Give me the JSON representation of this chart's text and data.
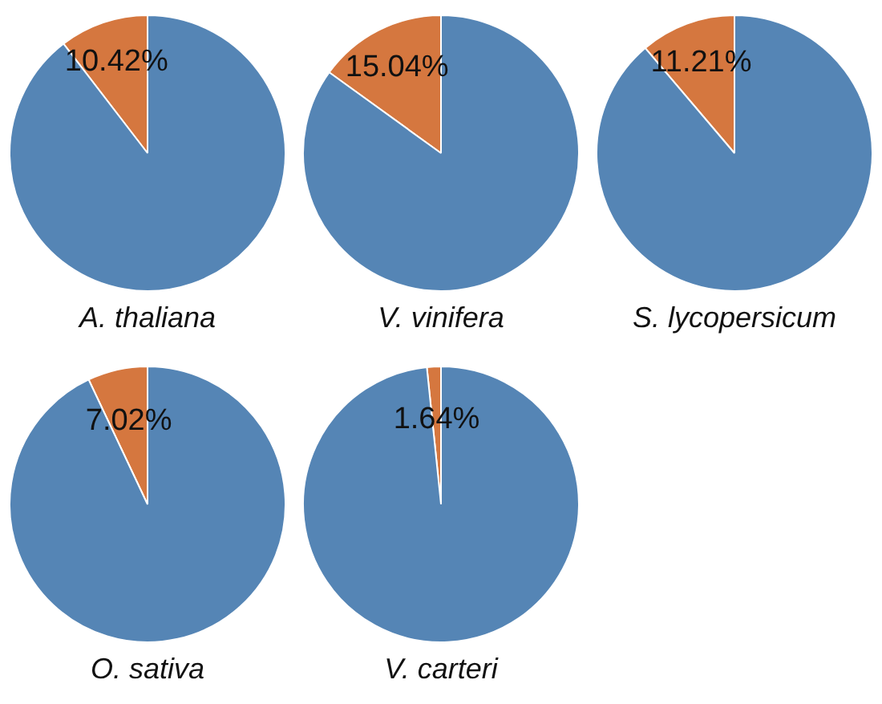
{
  "chart_data": [
    {
      "type": "pie",
      "title": "A. thaliana",
      "categories": [
        null,
        null
      ],
      "values": [
        10.42,
        89.58
      ],
      "colors": [
        "#d5773f",
        "#5585b5"
      ],
      "value_labels": [
        "10.42%",
        null
      ]
    },
    {
      "type": "pie",
      "title": "V. vinifera",
      "categories": [
        null,
        null
      ],
      "values": [
        15.04,
        84.96
      ],
      "colors": [
        "#d5773f",
        "#5585b5"
      ],
      "value_labels": [
        "15.04%",
        null
      ]
    },
    {
      "type": "pie",
      "title": "S. lycopersicum",
      "categories": [
        null,
        null
      ],
      "values": [
        11.21,
        88.79
      ],
      "colors": [
        "#d5773f",
        "#5585b5"
      ],
      "value_labels": [
        "11.21%",
        null
      ]
    },
    {
      "type": "pie",
      "title": "O. sativa",
      "categories": [
        null,
        null
      ],
      "values": [
        7.02,
        92.98
      ],
      "colors": [
        "#d5773f",
        "#5585b5"
      ],
      "value_labels": [
        "7.02%",
        null
      ]
    },
    {
      "type": "pie",
      "title": "V. carteri",
      "categories": [
        null,
        null
      ],
      "values": [
        1.64,
        98.36
      ],
      "colors": [
        "#d5773f",
        "#5585b5"
      ],
      "value_labels": [
        "1.64%",
        null
      ]
    }
  ]
}
